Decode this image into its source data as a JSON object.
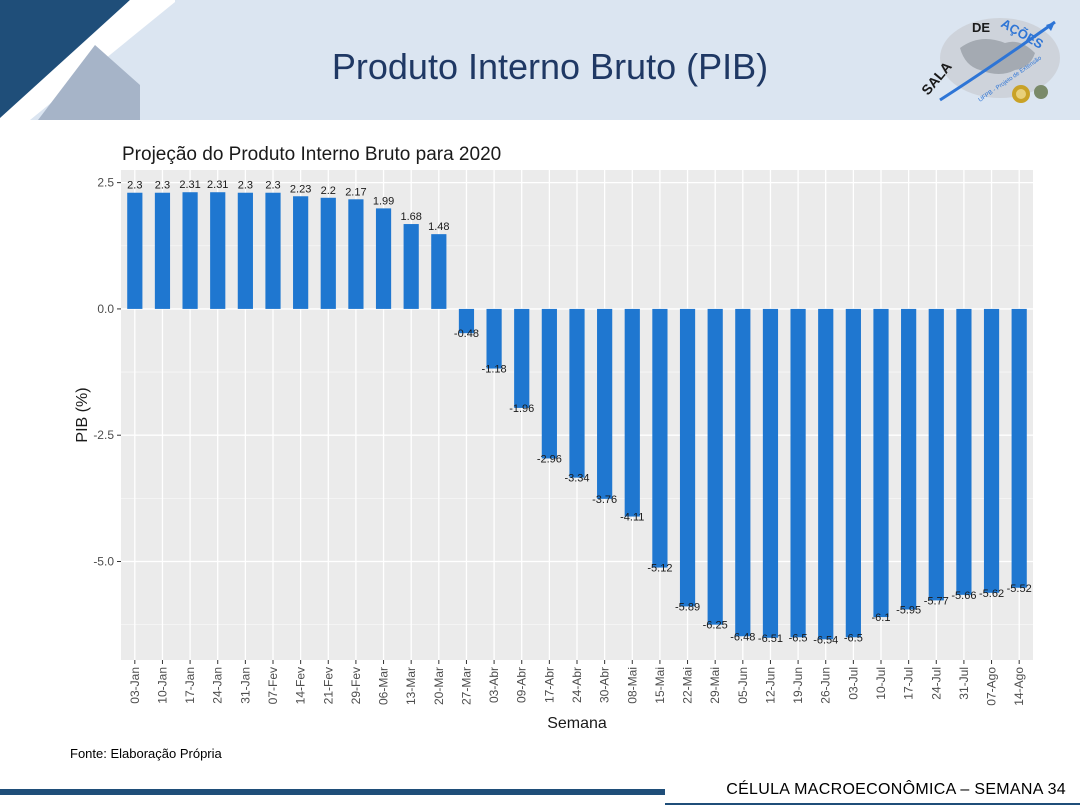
{
  "slide": {
    "title": "Produto Interno Bruto (PIB)",
    "source": "Fonte: Elaboração Própria",
    "footer": "CÉLULA MACROECONÔMICA – SEMANA 34",
    "logo_text": "SALA DE AÇÕES",
    "logo_subtext": "UFPB - Projeto de Extensão",
    "accent_color": "#1f3864"
  },
  "chart_data": {
    "type": "bar",
    "title": "Projeção do Produto Interno Bruto para 2020",
    "xlabel": "Semana",
    "ylabel": "PIB (%)",
    "ylim": [
      -6.95,
      2.75
    ],
    "yticks": [
      2.5,
      0.0,
      -2.5,
      -5.0
    ],
    "ytick_labels": [
      "2.5",
      "0.0",
      "-2.5",
      "-5.0"
    ],
    "bar_color": "#1f77d0",
    "panel_color": "#ebebeb",
    "grid": true,
    "categories": [
      "03-Jan",
      "10-Jan",
      "17-Jan",
      "24-Jan",
      "31-Jan",
      "07-Fev",
      "14-Fev",
      "21-Fev",
      "29-Fev",
      "06-Mar",
      "13-Mar",
      "20-Mar",
      "27-Mar",
      "03-Abr",
      "09-Abr",
      "17-Abr",
      "24-Abr",
      "30-Abr",
      "08-Mai",
      "15-Mai",
      "22-Mai",
      "29-Mai",
      "05-Jun",
      "12-Jun",
      "19-Jun",
      "26-Jun",
      "03-Jul",
      "10-Jul",
      "17-Jul",
      "24-Jul",
      "31-Jul",
      "07-Ago",
      "14-Ago"
    ],
    "values": [
      2.3,
      2.3,
      2.31,
      2.31,
      2.3,
      2.3,
      2.23,
      2.2,
      2.17,
      1.99,
      1.68,
      1.48,
      -0.48,
      -1.18,
      -1.96,
      -2.96,
      -3.34,
      -3.76,
      -4.11,
      -5.12,
      -5.89,
      -6.25,
      -6.48,
      -6.51,
      -6.5,
      -6.54,
      -6.5,
      -6.1,
      -5.95,
      -5.77,
      -5.66,
      -5.62,
      -5.52
    ],
    "value_labels": [
      "2.3",
      "2.3",
      "2.31",
      "2.31",
      "2.3",
      "2.3",
      "2.23",
      "2.2",
      "2.17",
      "1.99",
      "1.68",
      "1.48",
      "-0.48",
      "-1.18",
      "-1.96",
      "-2.96",
      "-3.34",
      "-3.76",
      "-4.11",
      "-5.12",
      "-5.89",
      "-6.25",
      "-6.48",
      "-6.51",
      "-6.5",
      "-6.54",
      "-6.5",
      "-6.1",
      "-5.95",
      "-5.77",
      "-5.66",
      "-5.62",
      "-5.52"
    ]
  }
}
